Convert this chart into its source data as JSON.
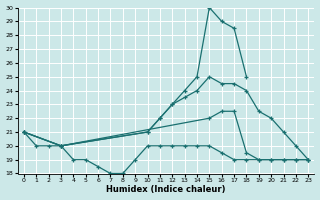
{
  "xlabel": "Humidex (Indice chaleur)",
  "bg_color": "#cce8e8",
  "grid_color": "#ffffff",
  "line_color": "#1a7070",
  "xlim": [
    -0.5,
    23.5
  ],
  "ylim": [
    18,
    30
  ],
  "xticks": [
    0,
    1,
    2,
    3,
    4,
    5,
    6,
    7,
    8,
    9,
    10,
    11,
    12,
    13,
    14,
    15,
    16,
    17,
    18,
    19,
    20,
    21,
    22,
    23
  ],
  "yticks": [
    18,
    19,
    20,
    21,
    22,
    23,
    24,
    25,
    26,
    27,
    28,
    29,
    30
  ],
  "lines": [
    {
      "x": [
        0,
        3,
        10,
        11,
        12,
        13,
        14,
        15,
        16,
        17,
        18
      ],
      "y": [
        21,
        20,
        21,
        22,
        23,
        24,
        25,
        30,
        29,
        28.5,
        25
      ]
    },
    {
      "x": [
        0,
        3,
        10,
        11,
        12,
        13,
        14,
        15,
        16,
        17,
        18,
        19,
        20,
        21,
        22,
        23
      ],
      "y": [
        21,
        20,
        21,
        22,
        23,
        23.5,
        24,
        25,
        24.5,
        24.5,
        24,
        22.5,
        22,
        21,
        20,
        19
      ]
    },
    {
      "x": [
        0,
        3,
        15,
        16,
        17,
        18,
        19,
        20,
        21,
        22,
        23
      ],
      "y": [
        21,
        20,
        22,
        22.5,
        22.5,
        19.5,
        19,
        19,
        19,
        19,
        19
      ]
    },
    {
      "x": [
        0,
        1,
        2,
        3,
        4,
        5,
        6,
        7,
        8,
        9,
        10,
        11,
        12,
        13,
        14,
        15,
        16,
        17,
        18,
        19,
        20,
        21,
        22,
        23
      ],
      "y": [
        21,
        20,
        20,
        20,
        19,
        19,
        18.5,
        18,
        18,
        19,
        20,
        20,
        20,
        20,
        20,
        20,
        19.5,
        19,
        19,
        19,
        19,
        19,
        19,
        19
      ]
    }
  ]
}
